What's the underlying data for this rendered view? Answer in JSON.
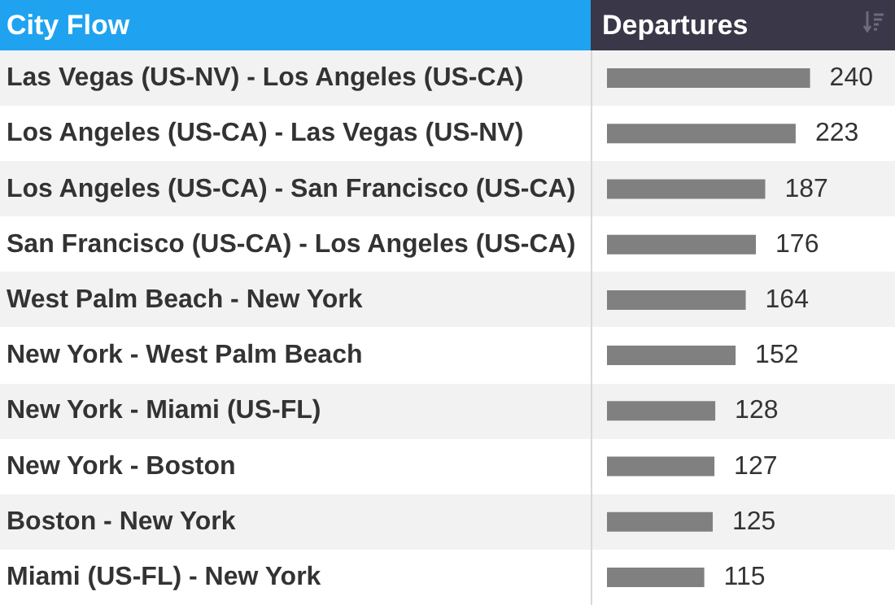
{
  "chart_data": {
    "type": "bar",
    "orientation": "horizontal",
    "ylabel": "City Flow",
    "xlabel": "Departures",
    "categories": [
      "Las Vegas (US-NV) - Los Angeles (US-CA)",
      "Los Angeles (US-CA) - Las Vegas (US-NV)",
      "Los Angeles (US-CA) - San Francisco (US-CA)",
      "San Francisco (US-CA) - Los Angeles (US-CA)",
      "West Palm Beach - New York",
      "New York - West Palm Beach",
      "New York - Miami (US-FL)",
      "New York - Boston",
      "Boston - New York",
      "Miami (US-FL) - New York"
    ],
    "values": [
      240,
      223,
      187,
      176,
      164,
      152,
      128,
      127,
      125,
      115
    ],
    "color": "#808080",
    "data_labels": true
  }
}
